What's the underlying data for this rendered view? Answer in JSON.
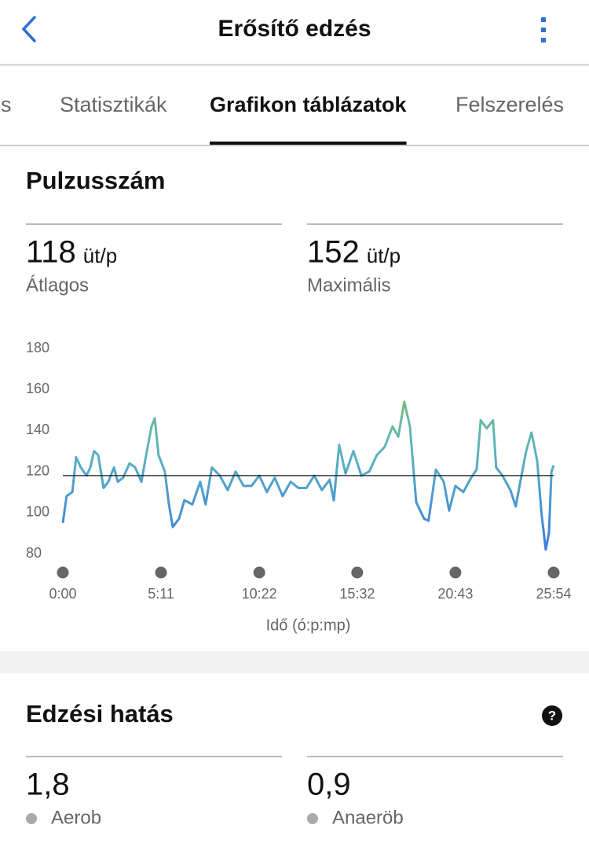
{
  "header": {
    "title": "Erősítő edzés"
  },
  "tabs": [
    "és",
    "Statisztikák",
    "Grafikon táblázatok",
    "Felszerelés"
  ],
  "active_tab": 2,
  "heart_rate_stats": [
    {
      "value": 118,
      "unit": "üt/p",
      "label": "Átlagos"
    },
    {
      "value": 152,
      "unit": "üt/p",
      "label": "Maximális"
    }
  ],
  "chart_data": {
    "type": "line",
    "title": "Pulzusszám",
    "xlabel": "Idő (ó:p:mp)",
    "x": [
      0,
      12,
      30,
      42,
      57,
      75,
      87,
      99,
      112,
      129,
      144,
      162,
      174,
      191,
      211,
      229,
      249,
      266,
      281,
      291,
      303,
      323,
      336,
      348,
      368,
      385,
      410,
      435,
      452,
      472,
      497,
      522,
      547,
      572,
      597,
      622,
      646,
      671,
      696,
      721,
      746,
      771,
      796,
      820,
      845,
      858,
      875,
      895,
      920,
      945,
      970,
      994,
      1019,
      1044,
      1062,
      1081,
      1099,
      1119,
      1144,
      1158,
      1181,
      1206,
      1223,
      1243,
      1268,
      1293,
      1310,
      1323,
      1342,
      1362,
      1372,
      1392,
      1417,
      1434,
      1452,
      1467,
      1484,
      1502,
      1516,
      1529,
      1539,
      1547,
      1554
    ],
    "values": [
      95,
      108,
      110,
      127,
      122,
      118,
      122,
      130,
      128,
      112,
      115,
      122,
      115,
      117,
      124,
      122,
      115,
      130,
      142,
      146,
      128,
      120,
      104,
      93,
      97,
      106,
      104,
      115,
      104,
      122,
      118,
      111,
      120,
      113,
      113,
      118,
      110,
      117,
      108,
      115,
      112,
      112,
      118,
      111,
      116,
      106,
      133,
      119,
      130,
      118,
      120,
      128,
      132,
      142,
      137,
      154,
      142,
      105,
      97,
      96,
      121,
      115,
      101,
      113,
      110,
      117,
      121,
      145,
      141,
      145,
      122,
      118,
      111,
      103,
      118,
      130,
      139,
      125,
      99,
      82,
      90,
      120,
      123
    ],
    "xlim": [
      0,
      1554
    ],
    "xticks": [
      {
        "value": 0,
        "label": "0:00"
      },
      {
        "value": 311,
        "label": "5:11"
      },
      {
        "value": 622,
        "label": "10:22"
      },
      {
        "value": 932,
        "label": "15:32"
      },
      {
        "value": 1243,
        "label": "20:43"
      },
      {
        "value": 1554,
        "label": "25:54"
      }
    ],
    "ylim": [
      80,
      180
    ],
    "yticks": [
      80,
      100,
      120,
      140,
      160,
      180
    ],
    "gradient": [
      "#3a7be0",
      "#5bb3c0",
      "#93c846"
    ],
    "reference_line": "heart_rate_stats.0.value"
  },
  "training_effect": {
    "title": "Edzési hatás",
    "help": "?",
    "stats": [
      {
        "value": "1,8",
        "label": "Aerob"
      },
      {
        "value": "0,9",
        "label": "Anaeröb"
      }
    ]
  }
}
